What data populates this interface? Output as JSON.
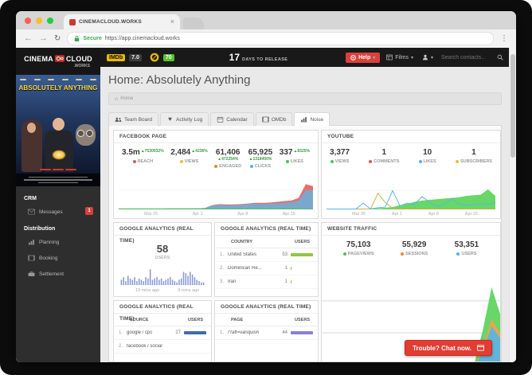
{
  "browser": {
    "tab_title": "CINEMACLOUD.WORKS",
    "secure_label": "Secure",
    "url": "https://app.cinemacloud.works"
  },
  "topbar": {
    "imdb_label": "IMDb",
    "imdb_rating": "7.0",
    "metascore": "70",
    "days_value": "17",
    "days_label": "DAYS TO RELEASE",
    "help_label": "Help",
    "films_label": "Films",
    "search_placeholder": "Search contacts...",
    "accent_red": "#d9413d"
  },
  "sidebar": {
    "logo_left": "CINEMA",
    "logo_right": "CLOUD",
    "logo_suffix": ".WORKS",
    "poster_title": "ABSOLUTELY ANYTHING",
    "sections": [
      {
        "label": "CRM",
        "items": [
          {
            "icon": "envelope-icon",
            "label": "Messages",
            "badge": "1"
          }
        ]
      },
      {
        "label": "Distribution",
        "items": [
          {
            "icon": "chart-icon",
            "label": "Planning"
          },
          {
            "icon": "film-icon",
            "label": "Booking"
          },
          {
            "icon": "briefcase-icon",
            "label": "Settlement"
          }
        ]
      }
    ]
  },
  "page": {
    "title": "Home: Absolutely Anything",
    "breadcrumb_home": "Home",
    "tabs": [
      {
        "icon": "team-icon",
        "label": "Team Board",
        "active": false
      },
      {
        "icon": "heart-icon",
        "label": "Activity Log",
        "active": false
      },
      {
        "icon": "calendar-icon",
        "label": "Calendar",
        "active": false
      },
      {
        "icon": "film-icon",
        "label": "OMDb",
        "active": false
      },
      {
        "icon": "chart-icon",
        "label": "Noise",
        "active": true
      }
    ]
  },
  "facebook_panel": {
    "title": "FACEBOOK PAGE",
    "stats": [
      {
        "value": "3.5m",
        "delta": "▲7530032%",
        "delta_pos": "right",
        "dot": "#e4544f",
        "label": "REACH"
      },
      {
        "value": "2,484",
        "delta": "▲4236%",
        "delta_pos": "right",
        "dot": "#e7c12d",
        "label": "VIEWS"
      },
      {
        "value": "61,406",
        "delta": "▲472254%",
        "delta_pos": "below",
        "dot": "#f0862c",
        "label": "ENGAGED"
      },
      {
        "value": "65,925",
        "delta": "▲1318400%",
        "delta_pos": "below",
        "dot": "#56b0e0",
        "label": "CLICKS"
      },
      {
        "value": "337",
        "delta": "▲8325%",
        "delta_pos": "right",
        "dot": "#50c156",
        "label": "LIKES"
      }
    ]
  },
  "youtube_panel": {
    "title": "YOUTUBE",
    "stats": [
      {
        "value": "3,377",
        "dot": "#50c156",
        "label": "VIEWS"
      },
      {
        "value": "1",
        "dot": "#e4544f",
        "label": "COMMENTS"
      },
      {
        "value": "10",
        "dot": "#56b0e0",
        "label": "LIKES"
      },
      {
        "value": "1",
        "dot": "#e7c12d",
        "label": "SUBSCRIBERS"
      }
    ]
  },
  "ga_users_panel": {
    "title": "GOOGLE ANALYTICS (REAL TIME)",
    "value": "58",
    "label": "USERS",
    "time_labels": [
      "19 mins ago",
      "9 mins ago"
    ]
  },
  "ga_country_panel": {
    "title": "GOOGLE ANALYTICS (REAL TIME)",
    "columns": [
      "COUNTRY",
      "USERS"
    ],
    "bar_color": "#8fc641",
    "rows": [
      {
        "rank": "1.",
        "name": "United States",
        "value": "53",
        "pct": 100
      },
      {
        "rank": "2.",
        "name": "Dominican Re...",
        "value": "1",
        "pct": 5
      },
      {
        "rank": "3.",
        "name": "Iran",
        "value": "1",
        "pct": 5
      }
    ]
  },
  "ga_source_panel": {
    "title": "GOOGLE ANALYTICS (REAL TIME)",
    "columns": [
      "SOURCE",
      "USERS"
    ],
    "bar_color": "#3a6ea8",
    "rows": [
      {
        "rank": "1.",
        "name": "google / cpc",
        "value": "27",
        "pct": 100
      },
      {
        "rank": "2.",
        "name": "facebook / social",
        "value": "",
        "pct": 0
      }
    ]
  },
  "ga_page_panel": {
    "title": "GOOGLE ANALYTICS (REAL TIME)",
    "columns": [
      "PAGE",
      "USERS"
    ],
    "bar_color": "#8a7fd6",
    "rows": [
      {
        "rank": "1.",
        "name": "/?aff=vanquish",
        "value": "44",
        "pct": 100
      }
    ]
  },
  "traffic_panel": {
    "title": "WEBSITE TRAFFIC",
    "stats": [
      {
        "value": "75,103",
        "dot": "#50c156",
        "label": "PAGEVIEWS"
      },
      {
        "value": "55,929",
        "dot": "#f0862c",
        "label": "SESSIONS"
      },
      {
        "value": "53,351",
        "dot": "#56b0e0",
        "label": "USERS"
      }
    ]
  },
  "chat_button": {
    "label": "Trouble? Chat now."
  },
  "chart_data": [
    {
      "id": "facebook_engagement",
      "type": "area",
      "title": "Facebook page engagement over time",
      "x_labels": [
        "Mar 25",
        "Apr 1",
        "Apr 8",
        "Apr 15"
      ],
      "ymax": 80,
      "grid": [
        0.28
      ],
      "series": [
        {
          "name": "reach",
          "kind": "area",
          "color": "#e4615e",
          "values": [
            1,
            1,
            1,
            1,
            1,
            1,
            1,
            2,
            2,
            2,
            2,
            2,
            3,
            12,
            15,
            14,
            14,
            15,
            17,
            19,
            19,
            20,
            22,
            24,
            26,
            34,
            76,
            70
          ]
        },
        {
          "name": "clicks",
          "kind": "area",
          "color": "#72aed3",
          "values": [
            1,
            1,
            1,
            1,
            1,
            1,
            1,
            2,
            2,
            2,
            2,
            2,
            3,
            11,
            13,
            12,
            12,
            13,
            15,
            16,
            16,
            17,
            18,
            19,
            21,
            26,
            58,
            58
          ]
        },
        {
          "name": "likes",
          "kind": "line",
          "color": "#50c156",
          "values": [
            0.6,
            0.6
          ]
        }
      ]
    },
    {
      "id": "youtube_engagement",
      "type": "area",
      "title": "YouTube engagement over time",
      "x_labels": [
        "Mar 25",
        "Apr 1",
        "Apr 8",
        "Apr 15"
      ],
      "ymax": 40,
      "grid": [
        0.3
      ],
      "series": [
        {
          "name": "views",
          "kind": "area",
          "color": "#5ad45a",
          "values": [
            0,
            0,
            0,
            0,
            0,
            0,
            0.5,
            1,
            2,
            3,
            6,
            8,
            11,
            13,
            14,
            15,
            16,
            17,
            18,
            20,
            21,
            22,
            30,
            20
          ]
        },
        {
          "name": "subscribers",
          "kind": "line",
          "color": "#cfae3d",
          "values": [
            0,
            0,
            0,
            0,
            0,
            0,
            0,
            24,
            10,
            1,
            0,
            0,
            0,
            0,
            0,
            0,
            0,
            0,
            0,
            0,
            0,
            0,
            0,
            0
          ]
        },
        {
          "name": "likes",
          "kind": "line",
          "color": "#58b6e4",
          "values": [
            0,
            0,
            0,
            0,
            0,
            9,
            0,
            2,
            3,
            28,
            5,
            9,
            7,
            19,
            11,
            4,
            7,
            16,
            8,
            6,
            7,
            8,
            7,
            10
          ]
        }
      ]
    },
    {
      "id": "ga_realtime_users",
      "type": "bar",
      "title": "Google Analytics real-time users per minute",
      "color": "#8c9bd8",
      "ymax": 12,
      "values": [
        4,
        6,
        3,
        7,
        5,
        4,
        6,
        3,
        5,
        4,
        3,
        6,
        5,
        12,
        4,
        5,
        6,
        4,
        5,
        3,
        4,
        5,
        6,
        4,
        3,
        2,
        4,
        5,
        10,
        9,
        7,
        10,
        8,
        6,
        4,
        3,
        2,
        2
      ]
    },
    {
      "id": "website_traffic",
      "type": "area",
      "title": "Website traffic over time",
      "ymax": 80,
      "grid": [
        0.3,
        0.62
      ],
      "series": [
        {
          "name": "pageviews",
          "kind": "area",
          "color": "#5ad45a",
          "values": [
            0.5,
            0.5,
            0.5,
            0.5,
            0.5,
            0.5,
            0.5,
            0.5,
            1,
            1,
            1,
            1.5,
            1.5,
            2,
            2,
            3,
            3,
            4,
            6,
            34,
            68,
            46
          ]
        },
        {
          "name": "sessions",
          "kind": "area",
          "color": "#f0a44e",
          "values": [
            0,
            0,
            0,
            0,
            0,
            0,
            0,
            0,
            0,
            0,
            0,
            0,
            0,
            0,
            0,
            0,
            0,
            1,
            2,
            20,
            42,
            30
          ]
        },
        {
          "name": "users",
          "kind": "area",
          "color": "#58b6e4",
          "values": [
            0,
            0,
            0,
            0,
            0,
            0,
            0,
            0,
            0,
            0,
            0,
            0,
            0,
            0,
            0,
            0,
            0,
            1,
            2,
            16,
            36,
            26
          ]
        }
      ]
    }
  ]
}
